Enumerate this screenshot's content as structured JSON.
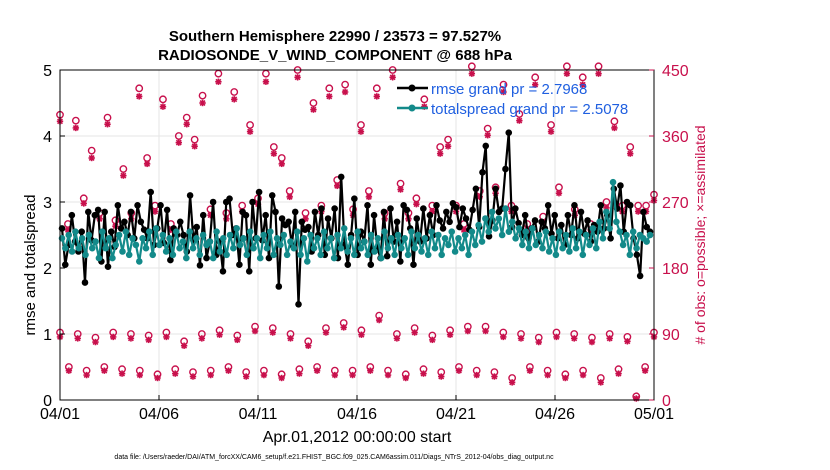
{
  "chart_data": {
    "type": "line",
    "title_line1": "Southern Hemisphere 22990 / 23573 = 97.527%",
    "title_line2": "RADIOSONDE_V_WIND_COMPONENT @ 688 hPa",
    "ylabel_left": "rmse and totalspread",
    "ylabel_right": "# of obs: o=possible; ×=assimilated",
    "xlabel": "Apr.01,2012 00:00:00 start",
    "footer": "data file: /Users/raeder/DAI/ATM_forcXX/CAM6_setup/f.e21.FHIST_BGC.f09_025.CAM6assim.011/Diags_NTrS_2012-04/obs_diag_output.nc",
    "ylim_left": [
      0,
      5
    ],
    "ylim_right": [
      0,
      450
    ],
    "xlim": [
      0,
      30
    ],
    "yticks_left": [
      "0",
      "1",
      "2",
      "3",
      "4",
      "5"
    ],
    "yticks_right": [
      "0",
      "90",
      "180",
      "270",
      "360",
      "450"
    ],
    "xticks": [
      "04/01",
      "04/06",
      "04/11",
      "04/16",
      "04/21",
      "04/26",
      "05/01"
    ],
    "colors": {
      "rmse": "#000000",
      "spread": "#138a8a",
      "obs": "#c8104c",
      "legend_text": "#1f5fe0",
      "grid": "#e6e6e6"
    },
    "series": [
      {
        "name": "rmse grand pr = 2.7968",
        "values": [
          2.6,
          2.05,
          2.35,
          2.8,
          2.4,
          2.25,
          2.55,
          1.78,
          2.85,
          2.42,
          2.8,
          2.88,
          2.1,
          2.85,
          2.02,
          2.55,
          2.32,
          2.95,
          2.6,
          2.7,
          2.5,
          2.85,
          2.45,
          2.95,
          2.7,
          2.58,
          2.45,
          3.15,
          2.35,
          2.6,
          2.95,
          2.38,
          2.88,
          2.12,
          2.6,
          2.5,
          2.7,
          2.5,
          2.25,
          3.1,
          2.42,
          2.62,
          2.04,
          2.8,
          2.15,
          2.4,
          3.0,
          2.2,
          2.4,
          1.95,
          3.0,
          3.05,
          2.5,
          2.6,
          2.05,
          2.85,
          2.8,
          1.95,
          3.0,
          2.45,
          3.15,
          2.42,
          2.8,
          2.15,
          3.1,
          2.85,
          1.72,
          2.75,
          2.65,
          2.7,
          2.35,
          2.85,
          1.45,
          2.7,
          2.58,
          2.62,
          2.25,
          2.85,
          2.5,
          2.9,
          2.2,
          2.75,
          2.45,
          2.9,
          2.15,
          3.38,
          2.35,
          2.05,
          2.5,
          3.05,
          2.2,
          2.55,
          2.4,
          2.95,
          2.05,
          2.8,
          2.3,
          2.15,
          2.85,
          2.18,
          2.9,
          2.4,
          2.7,
          2.1,
          2.95,
          2.88,
          2.6,
          2.05,
          2.75,
          2.4,
          2.9,
          2.45,
          2.8,
          2.5,
          2.95,
          2.72,
          2.6,
          2.85,
          2.7,
          2.98,
          2.92,
          2.62,
          2.9,
          2.75,
          2.58,
          2.88,
          3.2,
          2.62,
          3.45,
          3.85,
          2.48,
          2.72,
          3.2,
          2.85,
          2.9,
          3.5,
          4.05,
          2.62,
          2.9,
          2.68,
          2.5,
          2.8,
          2.45,
          2.6,
          2.72,
          2.4,
          2.7,
          2.6,
          2.95,
          2.52,
          2.8,
          2.45,
          2.65,
          2.35,
          2.8,
          2.5,
          2.95,
          2.45,
          2.85,
          2.52,
          2.72,
          2.4,
          2.65,
          2.55,
          2.95,
          2.6,
          2.8,
          2.45,
          3.2,
          2.9,
          3.25,
          2.55,
          3.0,
          2.95,
          2.45,
          2.2,
          1.88,
          2.85,
          2.62,
          2.55
        ],
        "line_color": "#000000"
      },
      {
        "name": "totalspread grand pr = 2.5078",
        "values": [
          2.45,
          2.3,
          2.5,
          2.25,
          2.55,
          2.3,
          2.45,
          2.2,
          2.5,
          2.3,
          2.4,
          2.15,
          2.55,
          2.3,
          2.45,
          2.15,
          2.35,
          2.5,
          2.25,
          2.55,
          2.2,
          2.45,
          2.35,
          2.1,
          2.45,
          2.3,
          2.55,
          2.2,
          2.6,
          2.35,
          2.5,
          2.25,
          2.45,
          2.2,
          2.55,
          2.3,
          2.4,
          2.15,
          2.55,
          2.3,
          2.45,
          2.2,
          2.5,
          2.35,
          2.4,
          2.15,
          2.55,
          2.25,
          2.45,
          2.2,
          2.5,
          2.3,
          2.6,
          2.35,
          2.45,
          2.2,
          2.55,
          2.3,
          2.45,
          2.15,
          2.5,
          2.3,
          2.55,
          2.2,
          2.45,
          2.35,
          2.5,
          2.2,
          2.4,
          2.3,
          2.55,
          2.2,
          2.45,
          2.1,
          2.5,
          2.3,
          2.45,
          2.2,
          2.55,
          2.3,
          2.45,
          2.15,
          2.5,
          2.3,
          2.6,
          2.25,
          2.45,
          2.2,
          2.55,
          2.3,
          2.4,
          2.2,
          2.5,
          2.25,
          2.45,
          2.15,
          2.55,
          2.3,
          2.45,
          2.2,
          2.5,
          2.3,
          2.45,
          2.2,
          2.55,
          2.3,
          2.5,
          2.25,
          2.45,
          2.2,
          2.55,
          2.3,
          2.5,
          2.2,
          2.45,
          2.35,
          2.55,
          2.25,
          2.45,
          2.3,
          2.5,
          2.2,
          2.55,
          2.35,
          2.65,
          2.4,
          2.75,
          2.55,
          2.85,
          2.6,
          2.75,
          2.5,
          2.9,
          2.55,
          2.7,
          2.45,
          2.6,
          2.35,
          2.55,
          2.3,
          2.6,
          2.35,
          2.5,
          2.3,
          2.55,
          2.25,
          2.45,
          2.2,
          2.55,
          2.3,
          2.5,
          2.25,
          2.6,
          2.3,
          2.55,
          2.2,
          2.5,
          2.35,
          2.6,
          2.3,
          2.7,
          2.45,
          2.85,
          2.6,
          3.3,
          2.7,
          2.55,
          2.35,
          2.5,
          2.2,
          2.55,
          2.3,
          2.5,
          2.45,
          2.4,
          2.5
        ],
        "line_color": "#138a8a"
      }
    ],
    "obs_possible_upper": [
      [
        0,
        389
      ],
      [
        1,
        240
      ],
      [
        2,
        381
      ],
      [
        3,
        275
      ],
      [
        4,
        340
      ],
      [
        5,
        255
      ],
      [
        6,
        385
      ],
      [
        7,
        245
      ],
      [
        8,
        315
      ],
      [
        9,
        255
      ],
      [
        10,
        425
      ],
      [
        11,
        330
      ],
      [
        12,
        265
      ],
      [
        13,
        410
      ],
      [
        14,
        240
      ],
      [
        15,
        360
      ],
      [
        16,
        385
      ],
      [
        17,
        355
      ],
      [
        18,
        415
      ],
      [
        19,
        260
      ],
      [
        20,
        445
      ],
      [
        21,
        255
      ],
      [
        22,
        420
      ],
      [
        23,
        265
      ],
      [
        24,
        375
      ],
      [
        25,
        275
      ],
      [
        26,
        445
      ],
      [
        27,
        345
      ],
      [
        28,
        330
      ],
      [
        29,
        285
      ],
      [
        30,
        450
      ],
      [
        31,
        255
      ],
      [
        32,
        405
      ],
      [
        33,
        265
      ],
      [
        34,
        425
      ],
      [
        35,
        300
      ],
      [
        36,
        430
      ],
      [
        37,
        260
      ],
      [
        38,
        375
      ],
      [
        39,
        285
      ],
      [
        40,
        425
      ],
      [
        41,
        255
      ],
      [
        42,
        450
      ],
      [
        43,
        295
      ],
      [
        44,
        255
      ],
      [
        45,
        275
      ],
      [
        46,
        410
      ],
      [
        47,
        265
      ],
      [
        48,
        345
      ],
      [
        49,
        355
      ],
      [
        50,
        265
      ],
      [
        51,
        240
      ],
      [
        52,
        455
      ],
      [
        53,
        285
      ],
      [
        54,
        370
      ],
      [
        55,
        290
      ],
      [
        56,
        430
      ],
      [
        57,
        265
      ],
      [
        58,
        390
      ],
      [
        59,
        240
      ],
      [
        60,
        440
      ],
      [
        61,
        250
      ],
      [
        62,
        375
      ],
      [
        63,
        290
      ],
      [
        64,
        455
      ],
      [
        65,
        260
      ],
      [
        66,
        440
      ],
      [
        67,
        240
      ],
      [
        68,
        455
      ],
      [
        69,
        270
      ],
      [
        70,
        380
      ],
      [
        71,
        265
      ],
      [
        72,
        345
      ],
      [
        73,
        265
      ],
      [
        74,
        265
      ],
      [
        75,
        280
      ]
    ],
    "obs_assim_upper": [
      [
        0,
        380
      ],
      [
        1,
        232
      ],
      [
        2,
        371
      ],
      [
        3,
        268
      ],
      [
        4,
        330
      ],
      [
        5,
        247
      ],
      [
        6,
        376
      ],
      [
        7,
        237
      ],
      [
        8,
        306
      ],
      [
        9,
        247
      ],
      [
        10,
        414
      ],
      [
        11,
        322
      ],
      [
        12,
        257
      ],
      [
        13,
        400
      ],
      [
        14,
        232
      ],
      [
        15,
        351
      ],
      [
        16,
        376
      ],
      [
        17,
        346
      ],
      [
        18,
        405
      ],
      [
        19,
        252
      ],
      [
        20,
        434
      ],
      [
        21,
        247
      ],
      [
        22,
        410
      ],
      [
        23,
        257
      ],
      [
        24,
        366
      ],
      [
        25,
        267
      ],
      [
        26,
        434
      ],
      [
        27,
        336
      ],
      [
        28,
        322
      ],
      [
        29,
        277
      ],
      [
        30,
        440
      ],
      [
        31,
        247
      ],
      [
        32,
        396
      ],
      [
        33,
        257
      ],
      [
        34,
        414
      ],
      [
        35,
        292
      ],
      [
        36,
        420
      ],
      [
        37,
        252
      ],
      [
        38,
        366
      ],
      [
        39,
        277
      ],
      [
        40,
        414
      ],
      [
        41,
        247
      ],
      [
        42,
        440
      ],
      [
        43,
        287
      ],
      [
        44,
        247
      ],
      [
        45,
        267
      ],
      [
        46,
        400
      ],
      [
        47,
        257
      ],
      [
        48,
        336
      ],
      [
        49,
        346
      ],
      [
        50,
        257
      ],
      [
        51,
        232
      ],
      [
        52,
        445
      ],
      [
        53,
        277
      ],
      [
        54,
        361
      ],
      [
        55,
        282
      ],
      [
        56,
        420
      ],
      [
        57,
        257
      ],
      [
        58,
        381
      ],
      [
        59,
        232
      ],
      [
        60,
        430
      ],
      [
        61,
        242
      ],
      [
        62,
        366
      ],
      [
        63,
        282
      ],
      [
        64,
        445
      ],
      [
        65,
        252
      ],
      [
        66,
        430
      ],
      [
        67,
        232
      ],
      [
        68,
        445
      ],
      [
        69,
        262
      ],
      [
        70,
        371
      ],
      [
        71,
        257
      ],
      [
        72,
        336
      ],
      [
        73,
        257
      ],
      [
        74,
        257
      ],
      [
        75,
        272
      ]
    ],
    "obs_possible_lower": [
      [
        0,
        92
      ],
      [
        1,
        45
      ],
      [
        2,
        90
      ],
      [
        3,
        40
      ],
      [
        4,
        85
      ],
      [
        5,
        45
      ],
      [
        6,
        92
      ],
      [
        7,
        42
      ],
      [
        8,
        90
      ],
      [
        9,
        40
      ],
      [
        10,
        88
      ],
      [
        11,
        35
      ],
      [
        12,
        92
      ],
      [
        13,
        42
      ],
      [
        14,
        80
      ],
      [
        15,
        38
      ],
      [
        16,
        90
      ],
      [
        17,
        40
      ],
      [
        18,
        95
      ],
      [
        19,
        45
      ],
      [
        20,
        88
      ],
      [
        21,
        38
      ],
      [
        22,
        100
      ],
      [
        23,
        40
      ],
      [
        24,
        98
      ],
      [
        25,
        35
      ],
      [
        26,
        90
      ],
      [
        27,
        42
      ],
      [
        28,
        80
      ],
      [
        29,
        45
      ],
      [
        30,
        98
      ],
      [
        31,
        40
      ],
      [
        32,
        105
      ],
      [
        33,
        40
      ],
      [
        34,
        95
      ],
      [
        35,
        45
      ],
      [
        36,
        115
      ],
      [
        37,
        40
      ],
      [
        38,
        90
      ],
      [
        39,
        35
      ],
      [
        40,
        98
      ],
      [
        41,
        42
      ],
      [
        42,
        88
      ],
      [
        43,
        38
      ],
      [
        44,
        95
      ],
      [
        45,
        45
      ],
      [
        46,
        100
      ],
      [
        47,
        40
      ],
      [
        48,
        100
      ],
      [
        49,
        38
      ],
      [
        50,
        92
      ],
      [
        51,
        30
      ],
      [
        52,
        90
      ],
      [
        53,
        45
      ],
      [
        54,
        85
      ],
      [
        55,
        40
      ],
      [
        56,
        92
      ],
      [
        57,
        35
      ],
      [
        58,
        90
      ],
      [
        59,
        40
      ],
      [
        60,
        85
      ],
      [
        61,
        30
      ],
      [
        62,
        90
      ],
      [
        63,
        42
      ],
      [
        64,
        86
      ],
      [
        65,
        5
      ],
      [
        66,
        45
      ],
      [
        67,
        92
      ]
    ],
    "obs_assim_lower": [
      [
        0,
        86
      ],
      [
        1,
        40
      ],
      [
        2,
        84
      ],
      [
        3,
        34
      ],
      [
        4,
        79
      ],
      [
        5,
        40
      ],
      [
        6,
        86
      ],
      [
        7,
        36
      ],
      [
        8,
        84
      ],
      [
        9,
        34
      ],
      [
        10,
        82
      ],
      [
        11,
        30
      ],
      [
        12,
        86
      ],
      [
        13,
        36
      ],
      [
        14,
        74
      ],
      [
        15,
        32
      ],
      [
        16,
        84
      ],
      [
        17,
        34
      ],
      [
        18,
        89
      ],
      [
        19,
        40
      ],
      [
        20,
        82
      ],
      [
        21,
        32
      ],
      [
        22,
        94
      ],
      [
        23,
        34
      ],
      [
        24,
        92
      ],
      [
        25,
        30
      ],
      [
        26,
        84
      ],
      [
        27,
        36
      ],
      [
        28,
        74
      ],
      [
        29,
        40
      ],
      [
        30,
        92
      ],
      [
        31,
        34
      ],
      [
        32,
        99
      ],
      [
        33,
        34
      ],
      [
        34,
        89
      ],
      [
        35,
        40
      ],
      [
        36,
        109
      ],
      [
        37,
        34
      ],
      [
        38,
        84
      ],
      [
        39,
        30
      ],
      [
        40,
        92
      ],
      [
        41,
        36
      ],
      [
        42,
        82
      ],
      [
        43,
        32
      ],
      [
        44,
        89
      ],
      [
        45,
        40
      ],
      [
        46,
        94
      ],
      [
        47,
        34
      ],
      [
        48,
        94
      ],
      [
        49,
        32
      ],
      [
        50,
        86
      ],
      [
        51,
        24
      ],
      [
        52,
        84
      ],
      [
        53,
        40
      ],
      [
        54,
        79
      ],
      [
        55,
        34
      ],
      [
        56,
        86
      ],
      [
        57,
        30
      ],
      [
        58,
        84
      ],
      [
        59,
        34
      ],
      [
        60,
        79
      ],
      [
        61,
        24
      ],
      [
        62,
        84
      ],
      [
        63,
        36
      ],
      [
        64,
        80
      ],
      [
        65,
        2
      ],
      [
        66,
        40
      ],
      [
        67,
        86
      ]
    ]
  }
}
